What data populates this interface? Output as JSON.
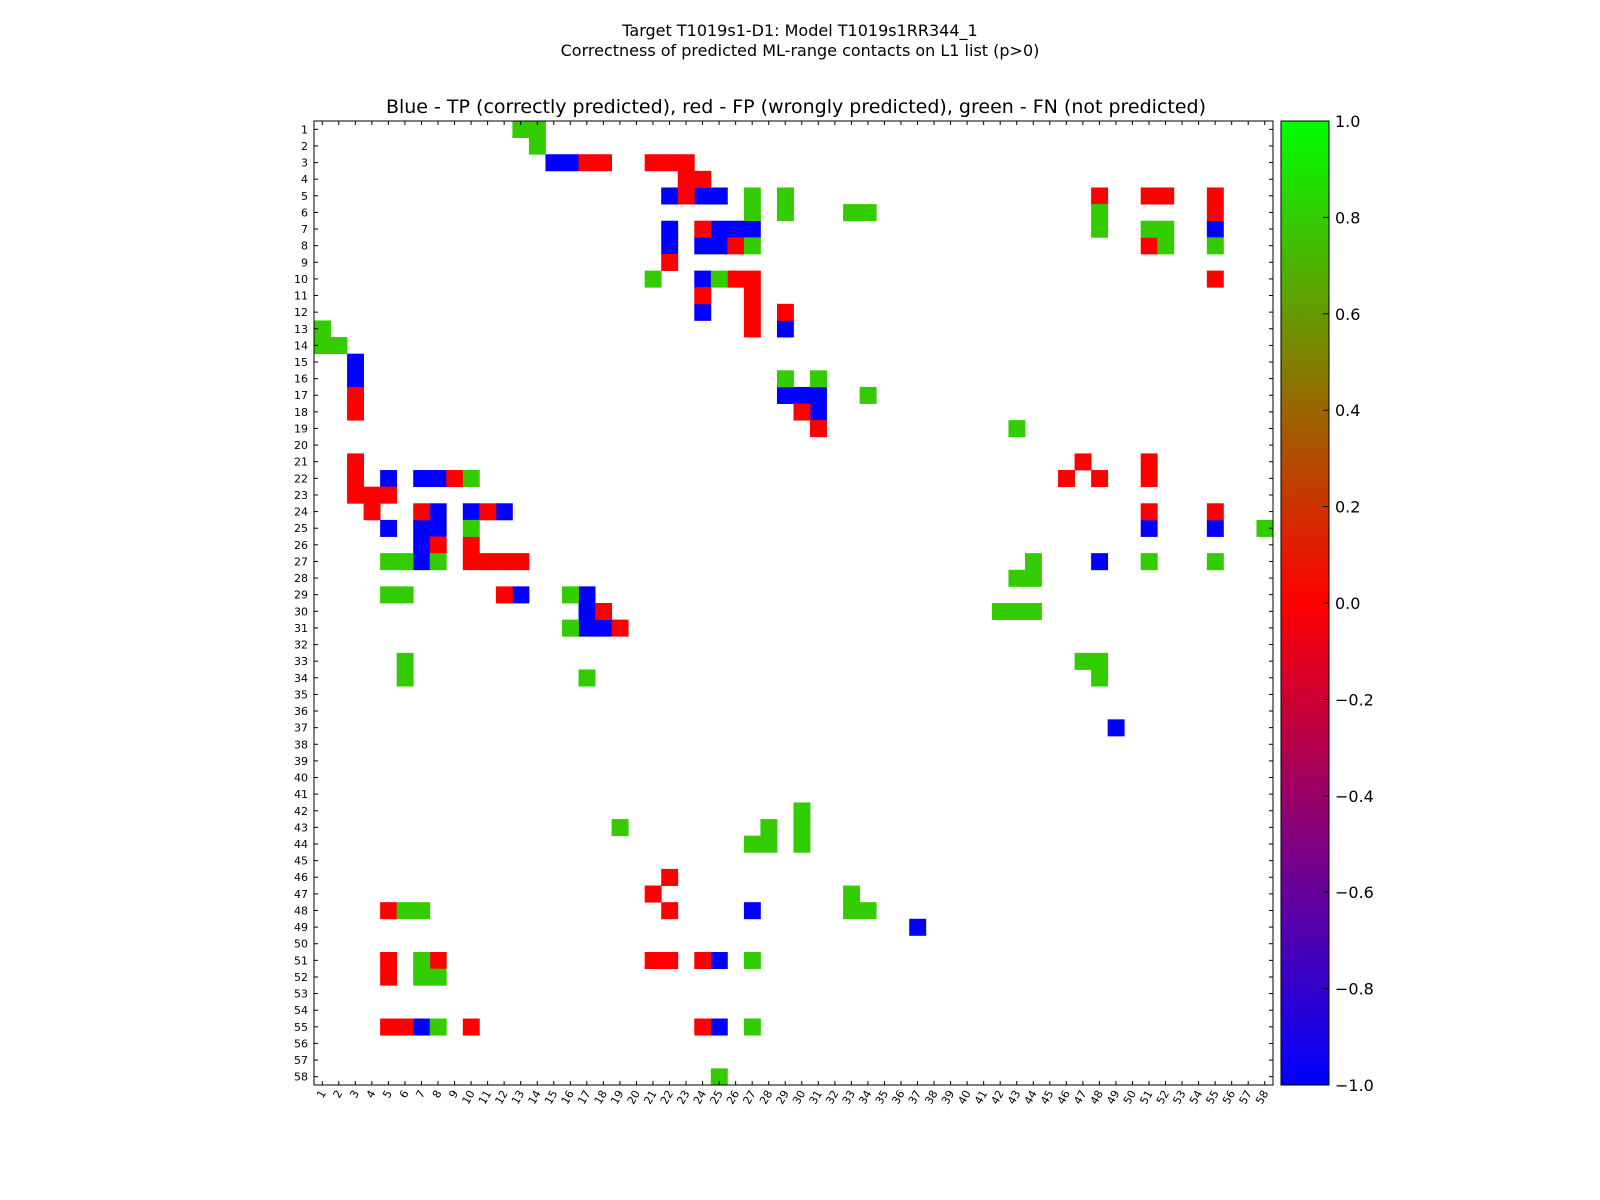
{
  "suptitle_line1": "Target T1019s1-D1: Model T1019s1RR344_1",
  "suptitle_line2": "Correctness of predicted ML-range contacts on L1 list (p>0)",
  "chart_data": {
    "type": "heatmap",
    "title": "Blue - TP (correctly predicted), red - FP (wrongly predicted), green - FN (not predicted)",
    "n": 58,
    "x_ticks": [
      "1",
      "2",
      "3",
      "4",
      "5",
      "6",
      "7",
      "8",
      "9",
      "10",
      "11",
      "12",
      "13",
      "14",
      "15",
      "16",
      "17",
      "18",
      "19",
      "20",
      "21",
      "22",
      "23",
      "24",
      "25",
      "26",
      "27",
      "28",
      "29",
      "30",
      "31",
      "32",
      "33",
      "34",
      "35",
      "36",
      "37",
      "38",
      "39",
      "40",
      "41",
      "42",
      "43",
      "44",
      "45",
      "46",
      "47",
      "48",
      "49",
      "50",
      "51",
      "52",
      "53",
      "54",
      "55",
      "56",
      "57",
      "58"
    ],
    "y_ticks": [
      "1",
      "2",
      "3",
      "4",
      "5",
      "6",
      "7",
      "8",
      "9",
      "10",
      "11",
      "12",
      "13",
      "14",
      "15",
      "16",
      "17",
      "18",
      "19",
      "20",
      "21",
      "22",
      "23",
      "24",
      "25",
      "26",
      "27",
      "28",
      "29",
      "30",
      "31",
      "32",
      "33",
      "34",
      "35",
      "36",
      "37",
      "38",
      "39",
      "40",
      "41",
      "42",
      "43",
      "44",
      "45",
      "46",
      "47",
      "48",
      "49",
      "50",
      "51",
      "52",
      "53",
      "54",
      "55",
      "56",
      "57",
      "58"
    ],
    "colormap": {
      "-1": "#0000ff",
      "0": "#ff0000",
      "0.8": "#33cc00"
    },
    "colorbar": {
      "min": -1.0,
      "max": 1.0,
      "ticks": [
        "1.0",
        "0.8",
        "0.6",
        "0.4",
        "0.2",
        "0.0",
        "−0.2",
        "−0.4",
        "−0.6",
        "−0.8",
        "−1.0"
      ]
    },
    "cells": {
      "TP": [
        [
          3,
          15
        ],
        [
          3,
          16
        ],
        [
          5,
          22
        ],
        [
          5,
          24
        ],
        [
          5,
          25
        ],
        [
          7,
          22
        ],
        [
          7,
          25
        ],
        [
          7,
          26
        ],
        [
          7,
          27
        ],
        [
          8,
          22
        ],
        [
          8,
          24
        ],
        [
          8,
          25
        ],
        [
          10,
          24
        ],
        [
          12,
          24
        ],
        [
          13,
          29
        ],
        [
          15,
          3
        ],
        [
          16,
          3
        ],
        [
          17,
          29
        ],
        [
          17,
          30
        ],
        [
          17,
          31
        ],
        [
          18,
          31
        ],
        [
          22,
          5
        ],
        [
          22,
          7
        ],
        [
          22,
          8
        ],
        [
          24,
          8
        ],
        [
          24,
          10
        ],
        [
          24,
          12
        ],
        [
          25,
          5
        ],
        [
          25,
          7
        ],
        [
          25,
          8
        ],
        [
          26,
          7
        ],
        [
          27,
          7
        ],
        [
          29,
          13
        ],
        [
          29,
          17
        ],
        [
          30,
          17
        ],
        [
          31,
          17
        ],
        [
          31,
          18
        ],
        [
          7,
          55
        ],
        [
          25,
          51
        ],
        [
          25,
          55
        ],
        [
          27,
          48
        ],
        [
          37,
          49
        ],
        [
          48,
          27
        ],
        [
          49,
          37
        ],
        [
          51,
          25
        ],
        [
          55,
          7
        ],
        [
          55,
          25
        ]
      ],
      "FP": [
        [
          3,
          17
        ],
        [
          3,
          18
        ],
        [
          3,
          21
        ],
        [
          3,
          22
        ],
        [
          3,
          23
        ],
        [
          4,
          23
        ],
        [
          4,
          24
        ],
        [
          5,
          23
        ],
        [
          7,
          24
        ],
        [
          8,
          26
        ],
        [
          9,
          22
        ],
        [
          10,
          26
        ],
        [
          10,
          27
        ],
        [
          11,
          24
        ],
        [
          11,
          27
        ],
        [
          12,
          27
        ],
        [
          12,
          29
        ],
        [
          13,
          27
        ],
        [
          17,
          3
        ],
        [
          18,
          3
        ],
        [
          18,
          30
        ],
        [
          19,
          31
        ],
        [
          21,
          3
        ],
        [
          22,
          3
        ],
        [
          22,
          9
        ],
        [
          23,
          3
        ],
        [
          23,
          4
        ],
        [
          23,
          5
        ],
        [
          24,
          4
        ],
        [
          24,
          7
        ],
        [
          24,
          11
        ],
        [
          26,
          8
        ],
        [
          26,
          10
        ],
        [
          27,
          10
        ],
        [
          27,
          11
        ],
        [
          27,
          12
        ],
        [
          27,
          13
        ],
        [
          29,
          12
        ],
        [
          30,
          18
        ],
        [
          31,
          19
        ],
        [
          5,
          48
        ],
        [
          5,
          51
        ],
        [
          5,
          52
        ],
        [
          5,
          55
        ],
        [
          6,
          55
        ],
        [
          8,
          51
        ],
        [
          10,
          55
        ],
        [
          21,
          47
        ],
        [
          22,
          46
        ],
        [
          22,
          48
        ],
        [
          21,
          51
        ],
        [
          22,
          51
        ],
        [
          24,
          51
        ],
        [
          24,
          55
        ],
        [
          46,
          22
        ],
        [
          47,
          21
        ],
        [
          48,
          22
        ],
        [
          48,
          5
        ],
        [
          51,
          5
        ],
        [
          52,
          5
        ],
        [
          51,
          8
        ],
        [
          51,
          21
        ],
        [
          51,
          22
        ],
        [
          51,
          24
        ],
        [
          55,
          5
        ],
        [
          55,
          6
        ],
        [
          55,
          10
        ],
        [
          55,
          24
        ]
      ],
      "FN": [
        [
          1,
          13
        ],
        [
          1,
          14
        ],
        [
          2,
          14
        ],
        [
          5,
          27
        ],
        [
          5,
          29
        ],
        [
          6,
          27
        ],
        [
          6,
          29
        ],
        [
          6,
          33
        ],
        [
          6,
          34
        ],
        [
          8,
          27
        ],
        [
          10,
          21
        ],
        [
          10,
          25
        ],
        [
          13,
          1
        ],
        [
          14,
          1
        ],
        [
          14,
          2
        ],
        [
          16,
          29
        ],
        [
          16,
          31
        ],
        [
          17,
          34
        ],
        [
          19,
          43
        ],
        [
          22,
          10
        ],
        [
          25,
          10
        ],
        [
          27,
          5
        ],
        [
          27,
          6
        ],
        [
          27,
          8
        ],
        [
          29,
          5
        ],
        [
          29,
          6
        ],
        [
          29,
          16
        ],
        [
          31,
          16
        ],
        [
          33,
          6
        ],
        [
          34,
          6
        ],
        [
          34,
          17
        ],
        [
          6,
          48
        ],
        [
          7,
          48
        ],
        [
          7,
          51
        ],
        [
          7,
          52
        ],
        [
          8,
          52
        ],
        [
          8,
          55
        ],
        [
          25,
          58
        ],
        [
          27,
          44
        ],
        [
          27,
          51
        ],
        [
          27,
          55
        ],
        [
          28,
          43
        ],
        [
          28,
          44
        ],
        [
          30,
          42
        ],
        [
          30,
          43
        ],
        [
          30,
          44
        ],
        [
          33,
          47
        ],
        [
          33,
          48
        ],
        [
          34,
          48
        ],
        [
          42,
          30
        ],
        [
          43,
          19
        ],
        [
          43,
          28
        ],
        [
          43,
          30
        ],
        [
          44,
          27
        ],
        [
          44,
          28
        ],
        [
          44,
          30
        ],
        [
          47,
          33
        ],
        [
          48,
          6
        ],
        [
          48,
          7
        ],
        [
          48,
          33
        ],
        [
          48,
          34
        ],
        [
          51,
          7
        ],
        [
          51,
          27
        ],
        [
          52,
          7
        ],
        [
          52,
          8
        ],
        [
          55,
          8
        ],
        [
          55,
          27
        ],
        [
          58,
          25
        ]
      ]
    }
  }
}
